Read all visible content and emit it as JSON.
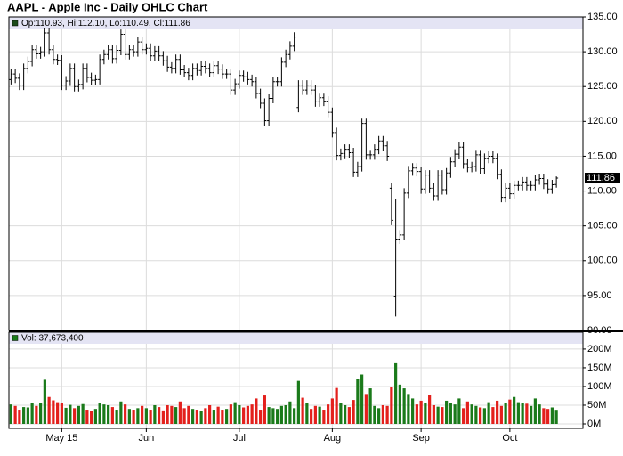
{
  "chart_data": [
    {
      "type": "ohlc",
      "title": "AAPL - Apple Inc - Daily OHLC Chart",
      "legend": "Op:110.93, Hi:112.10, Lo:110.49, Cl:111.86",
      "categories": [
        null,
        null,
        null,
        null,
        null,
        null,
        null,
        null,
        null,
        null,
        null,
        null,
        "May 15",
        null,
        null,
        null,
        null,
        null,
        null,
        null,
        null,
        null,
        null,
        null,
        null,
        null,
        null,
        null,
        null,
        null,
        null,
        null,
        "Jun",
        null,
        null,
        null,
        null,
        null,
        null,
        null,
        null,
        null,
        null,
        null,
        null,
        null,
        null,
        null,
        null,
        null,
        null,
        null,
        null,
        null,
        "Jul",
        null,
        null,
        null,
        null,
        null,
        null,
        null,
        null,
        null,
        null,
        null,
        null,
        null,
        null,
        null,
        null,
        null,
        null,
        null,
        null,
        null,
        "Aug",
        null,
        null,
        null,
        null,
        null,
        null,
        null,
        null,
        null,
        null,
        null,
        null,
        null,
        null,
        null,
        null,
        null,
        null,
        null,
        null,
        "Sep",
        null,
        null,
        null,
        null,
        null,
        null,
        null,
        null,
        null,
        null,
        null,
        null,
        null,
        null,
        null,
        null,
        null,
        null,
        null,
        null,
        "Oct",
        null,
        null,
        null,
        null,
        null,
        null,
        null,
        null,
        null,
        null,
        null
      ],
      "open": [
        126.0,
        126.8,
        126.2,
        125.2,
        127.6,
        128.6,
        130.3,
        129.7,
        130.0,
        132.7,
        130.3,
        128.9,
        128.8,
        125.2,
        125.8,
        127.6,
        125.0,
        125.3,
        127.6,
        126.3,
        125.9,
        126.0,
        128.9,
        129.6,
        130.3,
        129.0,
        130.2,
        132.5,
        129.6,
        130.3,
        130.0,
        131.4,
        130.3,
        130.5,
        129.4,
        130.1,
        129.4,
        128.7,
        127.8,
        127.6,
        128.9,
        127.4,
        127.0,
        126.6,
        127.6,
        127.3,
        127.9,
        127.6,
        127.0,
        128.0,
        127.5,
        126.8,
        126.8,
        124.5,
        125.4,
        126.6,
        126.4,
        126.0,
        125.7,
        124.0,
        122.6,
        120.1,
        123.3,
        125.7,
        125.7,
        128.5,
        129.6,
        130.8,
        122.0,
        125.2,
        124.5,
        125.2,
        124.5,
        122.8,
        123.4,
        122.9,
        121.3,
        118.4,
        115.1,
        115.4,
        116.0,
        115.5,
        112.7,
        113.5,
        119.7,
        115.2,
        115.2,
        116.0,
        117.2,
        116.5,
        110.4,
        94.9,
        103.1,
        103.7,
        109.7,
        112.9,
        113.3,
        112.8,
        110.3,
        112.3,
        110.4,
        109.3,
        112.3,
        110.2,
        112.6,
        114.2,
        115.3,
        116.3,
        113.9,
        113.4,
        113.5,
        115.2,
        113.2,
        114.7,
        115.0,
        114.7,
        112.4,
        109.1,
        110.4,
        109.6,
        110.8,
        110.8,
        111.3,
        110.8,
        110.8,
        111.6,
        111.8,
        111.0,
        110.3,
        110.93
      ],
      "high": [
        127.5,
        127.5,
        126.9,
        128.3,
        129.3,
        131.0,
        131.0,
        130.7,
        133.4,
        133.4,
        131.0,
        129.6,
        129.5,
        126.5,
        128.3,
        128.3,
        126.0,
        128.3,
        128.3,
        127.0,
        126.7,
        129.6,
        130.3,
        131.0,
        131.0,
        130.9,
        133.2,
        133.2,
        131.0,
        131.0,
        132.1,
        132.1,
        131.2,
        131.2,
        130.8,
        130.8,
        130.1,
        129.4,
        128.5,
        129.6,
        129.6,
        128.1,
        127.7,
        128.3,
        128.3,
        128.6,
        128.6,
        128.3,
        128.7,
        128.7,
        128.2,
        127.5,
        127.5,
        126.1,
        127.3,
        127.3,
        127.1,
        126.7,
        126.4,
        124.7,
        123.3,
        124.0,
        126.4,
        126.4,
        129.2,
        130.3,
        131.5,
        132.8,
        125.9,
        125.9,
        125.9,
        125.9,
        125.2,
        124.1,
        124.1,
        123.6,
        122.0,
        119.1,
        116.1,
        116.7,
        116.7,
        116.2,
        114.2,
        120.4,
        120.4,
        115.9,
        116.7,
        117.9,
        117.9,
        117.2,
        111.1,
        108.8,
        104.4,
        110.4,
        113.6,
        114.0,
        114.0,
        113.5,
        113.0,
        113.0,
        111.1,
        113.0,
        113.0,
        113.3,
        114.9,
        116.0,
        117.0,
        117.0,
        114.6,
        114.2,
        115.9,
        115.9,
        115.4,
        115.7,
        115.7,
        115.4,
        113.1,
        111.1,
        111.1,
        111.5,
        111.5,
        112.0,
        112.0,
        111.5,
        112.3,
        112.5,
        112.5,
        111.7,
        111.6,
        112.1
      ],
      "low": [
        125.3,
        125.5,
        124.5,
        124.5,
        126.9,
        127.9,
        129.0,
        129.0,
        129.3,
        129.6,
        128.2,
        128.1,
        124.5,
        124.5,
        125.1,
        124.3,
        124.3,
        124.6,
        125.6,
        125.2,
        125.2,
        125.3,
        128.2,
        128.9,
        128.3,
        128.3,
        129.5,
        128.9,
        128.9,
        129.3,
        129.3,
        129.6,
        129.6,
        128.7,
        128.7,
        128.7,
        128.0,
        127.1,
        126.9,
        126.9,
        126.7,
        126.3,
        125.9,
        125.9,
        126.6,
        126.6,
        126.9,
        126.3,
        126.3,
        126.8,
        126.1,
        126.1,
        123.8,
        123.8,
        124.7,
        125.7,
        125.3,
        125.0,
        123.3,
        121.9,
        119.4,
        119.4,
        122.6,
        125.0,
        125.0,
        127.8,
        128.9,
        130.1,
        121.3,
        123.8,
        123.8,
        123.8,
        122.1,
        122.1,
        122.2,
        120.6,
        117.7,
        114.4,
        114.4,
        114.7,
        114.8,
        112.0,
        112.0,
        112.8,
        114.5,
        114.5,
        114.5,
        115.3,
        115.8,
        114.3,
        105.1,
        92.0,
        102.4,
        103.0,
        109.0,
        112.2,
        112.1,
        109.6,
        109.6,
        109.7,
        108.6,
        108.6,
        109.5,
        109.5,
        111.9,
        113.5,
        114.6,
        113.2,
        112.7,
        112.7,
        112.8,
        112.5,
        112.5,
        114.0,
        114.0,
        111.7,
        108.4,
        108.4,
        108.9,
        108.9,
        110.1,
        110.1,
        110.1,
        110.1,
        110.1,
        110.9,
        110.3,
        109.6,
        109.6,
        110.49
      ],
      "close": [
        126.8,
        126.2,
        125.2,
        127.6,
        128.6,
        130.3,
        129.7,
        130.0,
        132.7,
        130.3,
        128.9,
        128.8,
        125.2,
        125.8,
        127.6,
        125.0,
        125.3,
        127.6,
        126.3,
        125.9,
        126.0,
        128.9,
        129.6,
        130.3,
        129.0,
        130.2,
        132.5,
        129.6,
        130.3,
        130.0,
        131.4,
        130.3,
        130.5,
        129.4,
        130.1,
        129.4,
        128.7,
        127.8,
        127.6,
        128.9,
        127.4,
        127.0,
        126.6,
        127.6,
        127.3,
        127.9,
        127.6,
        127.0,
        128.0,
        127.5,
        126.8,
        126.8,
        124.5,
        125.4,
        126.6,
        126.4,
        126.0,
        125.7,
        124.0,
        122.6,
        120.1,
        123.3,
        125.7,
        125.7,
        128.5,
        129.6,
        130.8,
        132.1,
        125.2,
        124.5,
        125.2,
        124.5,
        122.8,
        123.4,
        122.9,
        121.3,
        118.4,
        115.1,
        115.4,
        116.0,
        115.5,
        112.7,
        113.5,
        119.7,
        115.2,
        115.2,
        116.0,
        117.2,
        116.5,
        115.0,
        105.8,
        103.1,
        103.7,
        109.7,
        112.9,
        113.3,
        112.8,
        110.3,
        112.3,
        110.4,
        109.3,
        112.3,
        110.2,
        112.6,
        114.2,
        115.3,
        116.3,
        113.9,
        113.4,
        113.5,
        115.2,
        113.2,
        114.7,
        115.0,
        114.7,
        112.4,
        109.1,
        110.4,
        109.6,
        110.8,
        110.8,
        111.3,
        110.8,
        110.8,
        111.6,
        111.8,
        111.0,
        110.3,
        110.9,
        111.86
      ],
      "color": "#000000",
      "ylim": [
        90,
        135
      ],
      "yticks": [
        {
          "value": 90,
          "label": "90.00"
        },
        {
          "value": 95,
          "label": "95.00"
        },
        {
          "value": 100,
          "label": "100.00"
        },
        {
          "value": 105,
          "label": "105.00"
        },
        {
          "value": 110,
          "label": "110.00"
        },
        {
          "value": 115,
          "label": "115.00"
        },
        {
          "value": 120,
          "label": "120.00"
        },
        {
          "value": 125,
          "label": "125.00"
        },
        {
          "value": 130,
          "label": "130.00"
        },
        {
          "value": 135,
          "label": "135.00"
        }
      ],
      "grid": true
    },
    {
      "type": "bar",
      "legend": "Vol: 37,673,400",
      "values": [
        52,
        48,
        38,
        45,
        44,
        56,
        48,
        55,
        118,
        72,
        63,
        58,
        56,
        43,
        51,
        42,
        48,
        53,
        38,
        34,
        40,
        55,
        52,
        50,
        45,
        38,
        60,
        52,
        40,
        38,
        42,
        48,
        42,
        38,
        50,
        45,
        36,
        50,
        48,
        45,
        60,
        42,
        48,
        40,
        38,
        35,
        42,
        50,
        38,
        46,
        38,
        40,
        52,
        58,
        50,
        44,
        48,
        52,
        68,
        38,
        76,
        45,
        42,
        40,
        48,
        50,
        60,
        42,
        115,
        70,
        55,
        40,
        48,
        46,
        38,
        52,
        68,
        96,
        56,
        50,
        45,
        64,
        120,
        132,
        80,
        95,
        48,
        42,
        50,
        48,
        98,
        162,
        105,
        95,
        80,
        68,
        52,
        62,
        56,
        78,
        50,
        46,
        45,
        62,
        55,
        52,
        68,
        42,
        60,
        52,
        48,
        44,
        42,
        58,
        45,
        62,
        48,
        55,
        65,
        72,
        58,
        55,
        54,
        48,
        68,
        52,
        42,
        40,
        44,
        37.6734
      ],
      "up_color": "#1a7a1a",
      "down_color": "#e3201c",
      "ylim": [
        0,
        245
      ],
      "yticks": [
        {
          "value": 0,
          "label": "0M"
        },
        {
          "value": 50,
          "label": "50M"
        },
        {
          "value": 100,
          "label": "100M"
        },
        {
          "value": 150,
          "label": "150M"
        },
        {
          "value": 200,
          "label": "200M"
        }
      ],
      "grid": true
    }
  ]
}
